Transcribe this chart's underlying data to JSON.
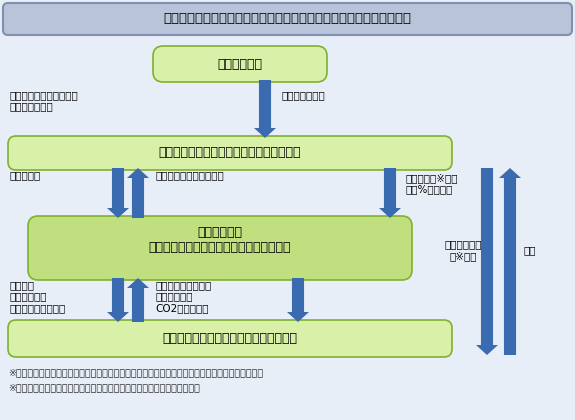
{
  "title": "京都議定書目標達成特別支援無利子融資（利子補給）制度スキーム図",
  "title_bg": "#b8c4d8",
  "title_border": "#8090b0",
  "title_text_color": "#000000",
  "box_bg_light": "#d8f0a8",
  "box_bg_mid": "#c0e080",
  "box_border": "#80b030",
  "arrow_color": "#3a6ab0",
  "bg_color": "#e8eef8",
  "footnotes": [
    "※１　企業は金融機関に、代理申請・受理その他利子補給金の交付に関する一切の手続きを委任。",
    "※２　金融機関からのモニタリング結果を検証するとともに、適宜実施。"
  ]
}
